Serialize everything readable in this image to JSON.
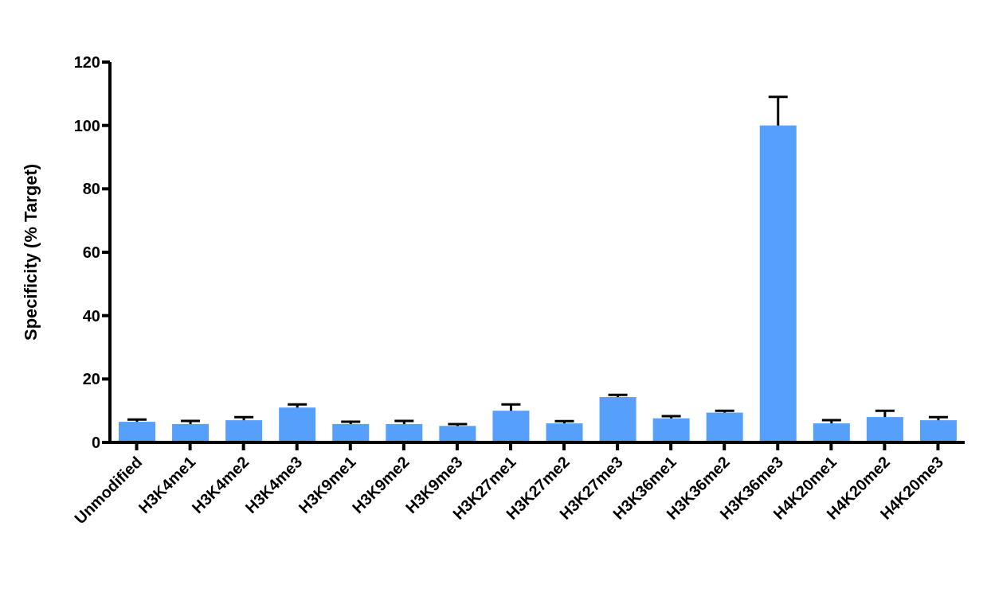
{
  "chart_data": {
    "type": "bar",
    "ylabel": "Specificity (% Target)",
    "categories": [
      "Unmodified",
      "H3K4me1",
      "H3K4me2",
      "H3K4me3",
      "H3K9me1",
      "H3K9me2",
      "H3K9me3",
      "H3K27me1",
      "H3K27me2",
      "H3K27me3",
      "H3K36me1",
      "H3K36me2",
      "H3K36me3",
      "H4K20me1",
      "H4K20me2",
      "H4K20me3"
    ],
    "values": [
      6.5,
      5.8,
      7,
      11,
      5.8,
      5.8,
      5.2,
      10,
      6,
      14.3,
      7.6,
      9.4,
      100,
      6,
      8,
      7
    ],
    "errors": [
      0.7,
      1,
      1,
      1,
      0.7,
      1,
      0.6,
      2,
      0.7,
      0.7,
      0.7,
      0.6,
      9,
      1,
      2,
      1
    ],
    "color": "#56a0fb",
    "ylim": [
      0,
      120
    ],
    "yticks": [
      0,
      20,
      40,
      60,
      80,
      100,
      120
    ],
    "grid": false,
    "legend": false
  }
}
